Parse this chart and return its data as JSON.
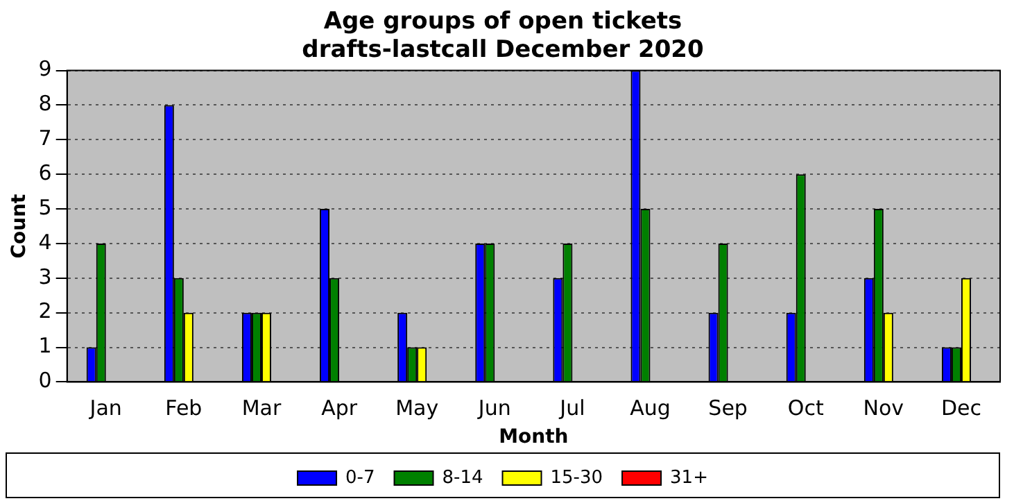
{
  "chart_data": {
    "type": "bar",
    "title": "Age groups of open tickets\ndrafts-lastcall December 2020",
    "xlabel": "Month",
    "ylabel": "Count",
    "categories": [
      "Jan",
      "Feb",
      "Mar",
      "Apr",
      "May",
      "Jun",
      "Jul",
      "Aug",
      "Sep",
      "Oct",
      "Nov",
      "Dec"
    ],
    "series": [
      {
        "name": "0-7",
        "color": "#0000ff",
        "values": [
          1,
          8,
          2,
          5,
          2,
          4,
          3,
          9,
          2,
          2,
          3,
          1
        ]
      },
      {
        "name": "8-14",
        "color": "#008000",
        "values": [
          4,
          3,
          2,
          3,
          1,
          4,
          4,
          5,
          4,
          6,
          5,
          1
        ]
      },
      {
        "name": "15-30",
        "color": "#ffff00",
        "values": [
          0,
          2,
          2,
          0,
          1,
          0,
          0,
          0,
          0,
          0,
          2,
          3
        ]
      },
      {
        "name": "31+",
        "color": "#ff0000",
        "values": [
          0,
          0,
          0,
          0,
          0,
          0,
          0,
          0,
          0,
          0,
          0,
          0
        ]
      }
    ],
    "ylim": [
      0,
      9
    ],
    "yticks": [
      0,
      1,
      2,
      3,
      4,
      5,
      6,
      7,
      8,
      9
    ],
    "grid": "y",
    "legend": "bottom"
  }
}
